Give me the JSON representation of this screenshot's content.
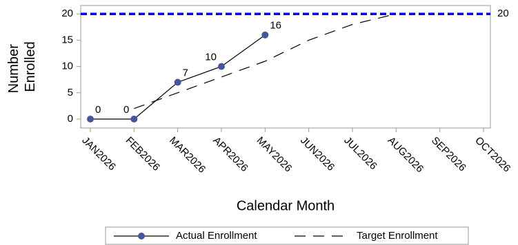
{
  "chart_data": {
    "type": "line",
    "x_label": "Calendar Month",
    "y_label": [
      "Number",
      "Enrolled"
    ],
    "categories": [
      "JAN2026",
      "FEB2026",
      "MAR2026",
      "APR2026",
      "MAY2026",
      "JUN2026",
      "JUL2026",
      "AUG2026",
      "SEP2026",
      "OCT2026"
    ],
    "series": [
      {
        "name": "Actual Enrollment",
        "color": "#46569a",
        "line_color": "#000000",
        "style": "solid",
        "markers": true,
        "data_labels": true,
        "values": [
          0,
          0,
          7,
          10,
          16,
          null,
          null,
          null,
          null,
          null
        ]
      },
      {
        "name": "Target Enrollment",
        "color": "#000000",
        "style": "dashed",
        "markers": false,
        "data_labels": false,
        "values": [
          null,
          2,
          5,
          8,
          11,
          15,
          18,
          20,
          null,
          null
        ]
      }
    ],
    "reference_line": {
      "value": 20,
      "color": "#0000ff"
    },
    "ylim": [
      -1.7,
      21.6
    ],
    "yticks": [
      0,
      5,
      10,
      15,
      20
    ],
    "legend": "bottom"
  }
}
